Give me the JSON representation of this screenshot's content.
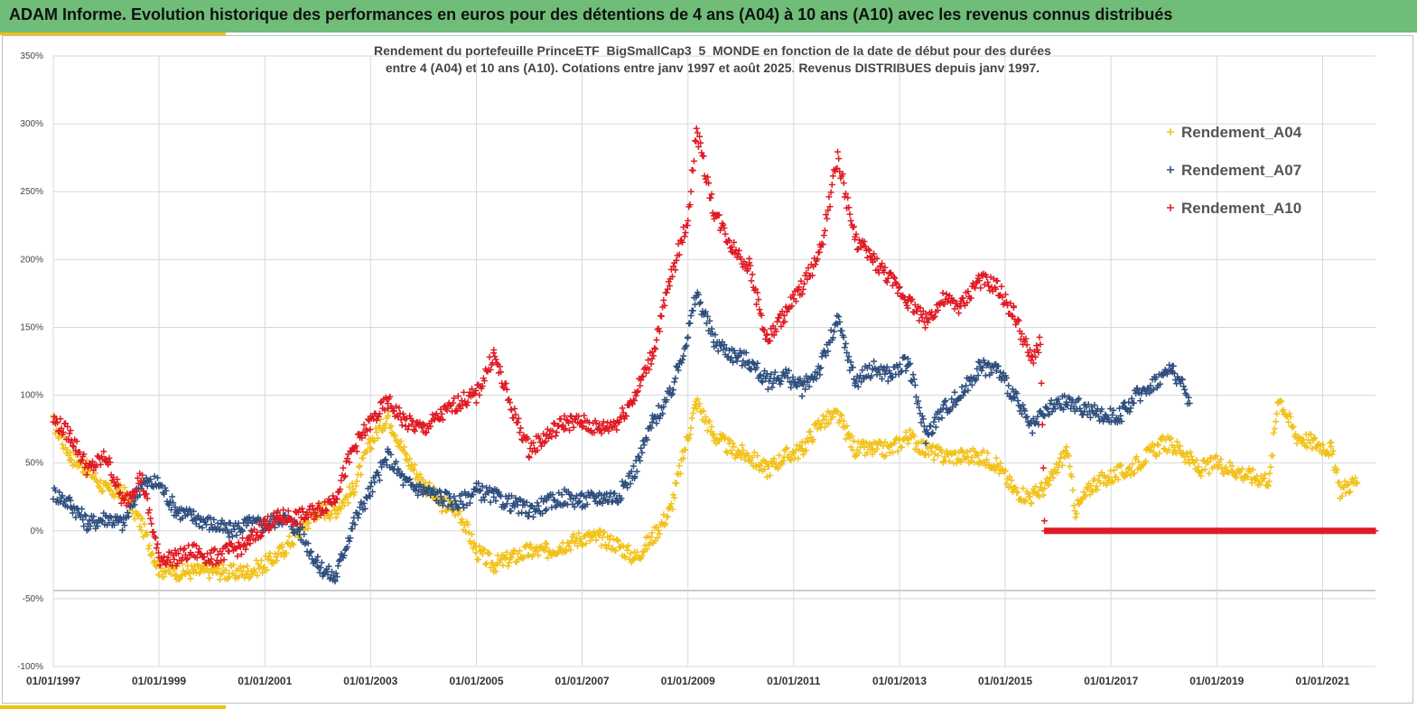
{
  "header": {
    "title": "ADAM Informe. Evolution historique des performances en euros pour des détentions de 4 ans (A04) à 10 ans (A10) avec les revenus connus distribués"
  },
  "colors": {
    "banner": "#6fbd78",
    "accent": "#f0c20c",
    "A04": "#f2c21b",
    "A07": "#2f4f7f",
    "A10": "#e01b24"
  },
  "chart_data": {
    "type": "scatter",
    "title_line1": "Rendement du portefeuille PrinceETF_BigSmallCap3_5_MONDE en fonction de la date de début pour des durées",
    "title_line2": "entre 4 (A04) et 10 ans (A10). Cotations entre janv 1997 et août 2025. Revenus DISTRIBUES depuis janv 1997.",
    "xlabel": "",
    "ylabel": "",
    "marker": "+",
    "grid": true,
    "legend_position": "top-right",
    "x_range": [
      "1997-01-01",
      "2022-01-01"
    ],
    "y_range": [
      -100,
      350
    ],
    "y_ticks": [
      "350%",
      "300%",
      "250%",
      "200%",
      "150%",
      "100%",
      "50%",
      "0%",
      "-50%",
      "-100%"
    ],
    "y_tick_values": [
      350,
      300,
      250,
      200,
      150,
      100,
      50,
      0,
      -50,
      -100
    ],
    "x_ticks": [
      "01/01/1997",
      "01/01/1999",
      "01/01/2001",
      "01/01/2003",
      "01/01/2005",
      "01/01/2007",
      "01/01/2009",
      "01/01/2011",
      "01/01/2013",
      "01/01/2015",
      "01/01/2017",
      "01/01/2019",
      "01/01/2021"
    ],
    "x_tick_dates": [
      "1997-01-01",
      "1999-01-01",
      "2001-01-01",
      "2003-01-01",
      "2005-01-01",
      "2007-01-01",
      "2009-01-01",
      "2011-01-01",
      "2013-01-01",
      "2015-01-01",
      "2017-01-01",
      "2019-01-01",
      "2021-01-01"
    ],
    "series": [
      {
        "name": "Rendement_A04",
        "color": "#f2c21b",
        "points": [
          [
            "1997-01-01",
            80
          ],
          [
            "1997-05-01",
            55
          ],
          [
            "1997-09-01",
            45
          ],
          [
            "1998-01-01",
            30
          ],
          [
            "1998-05-01",
            28
          ],
          [
            "1998-09-01",
            5
          ],
          [
            "1999-01-01",
            -28
          ],
          [
            "1999-05-01",
            -30
          ],
          [
            "1999-09-01",
            -30
          ],
          [
            "2000-01-01",
            -29
          ],
          [
            "2000-05-01",
            -31
          ],
          [
            "2000-09-01",
            -30
          ],
          [
            "2001-01-01",
            -25
          ],
          [
            "2001-05-01",
            -15
          ],
          [
            "2001-09-01",
            0
          ],
          [
            "2002-01-01",
            15
          ],
          [
            "2002-05-01",
            15
          ],
          [
            "2002-09-01",
            30
          ],
          [
            "2003-01-01",
            65
          ],
          [
            "2003-05-01",
            85
          ],
          [
            "2003-09-01",
            55
          ],
          [
            "2004-01-01",
            35
          ],
          [
            "2004-05-01",
            20
          ],
          [
            "2004-09-01",
            15
          ],
          [
            "2005-01-01",
            -15
          ],
          [
            "2005-05-01",
            -25
          ],
          [
            "2005-09-01",
            -20
          ],
          [
            "2006-01-01",
            -15
          ],
          [
            "2006-05-01",
            -15
          ],
          [
            "2006-09-01",
            -10
          ],
          [
            "2007-01-01",
            -5
          ],
          [
            "2007-05-01",
            -5
          ],
          [
            "2007-09-01",
            -10
          ],
          [
            "2008-01-01",
            -20
          ],
          [
            "2008-05-01",
            -5
          ],
          [
            "2008-09-01",
            15
          ],
          [
            "2009-01-01",
            70
          ],
          [
            "2009-03-01",
            95
          ],
          [
            "2009-07-01",
            70
          ],
          [
            "2009-11-01",
            60
          ],
          [
            "2010-03-01",
            55
          ],
          [
            "2010-07-01",
            45
          ],
          [
            "2010-11-01",
            55
          ],
          [
            "2011-03-01",
            60
          ],
          [
            "2011-07-01",
            80
          ],
          [
            "2011-11-01",
            85
          ],
          [
            "2012-03-01",
            60
          ],
          [
            "2012-07-01",
            60
          ],
          [
            "2012-11-01",
            60
          ],
          [
            "2013-03-01",
            70
          ],
          [
            "2013-07-01",
            60
          ],
          [
            "2013-11-01",
            55
          ],
          [
            "2014-03-01",
            55
          ],
          [
            "2014-07-01",
            55
          ],
          [
            "2014-11-01",
            50
          ],
          [
            "2015-03-01",
            30
          ],
          [
            "2015-07-01",
            25
          ],
          [
            "2015-11-01",
            35
          ],
          [
            "2016-03-01",
            60
          ],
          [
            "2016-05-01",
            15
          ],
          [
            "2016-09-01",
            35
          ],
          [
            "2017-01-01",
            40
          ],
          [
            "2017-05-01",
            45
          ],
          [
            "2017-09-01",
            55
          ],
          [
            "2018-01-01",
            65
          ],
          [
            "2018-05-01",
            60
          ],
          [
            "2018-09-01",
            45
          ],
          [
            "2019-01-01",
            50
          ],
          [
            "2019-05-01",
            45
          ],
          [
            "2019-09-01",
            40
          ],
          [
            "2020-01-01",
            38
          ],
          [
            "2020-03-01",
            100
          ],
          [
            "2020-07-01",
            70
          ],
          [
            "2020-11-01",
            65
          ],
          [
            "2021-03-01",
            60
          ],
          [
            "2021-05-01",
            30
          ],
          [
            "2021-09-01",
            37
          ]
        ]
      },
      {
        "name": "Rendement_A07",
        "color": "#2f4f7f",
        "points": [
          [
            "1997-01-01",
            28
          ],
          [
            "1997-05-01",
            20
          ],
          [
            "1997-09-01",
            5
          ],
          [
            "1998-01-01",
            10
          ],
          [
            "1998-05-01",
            5
          ],
          [
            "1998-09-01",
            35
          ],
          [
            "1999-01-01",
            35
          ],
          [
            "1999-05-01",
            15
          ],
          [
            "1999-09-01",
            10
          ],
          [
            "2000-01-01",
            5
          ],
          [
            "2000-05-01",
            0
          ],
          [
            "2000-09-01",
            5
          ],
          [
            "2001-01-01",
            5
          ],
          [
            "2001-05-01",
            10
          ],
          [
            "2001-09-01",
            0
          ],
          [
            "2002-01-01",
            -25
          ],
          [
            "2002-05-01",
            -35
          ],
          [
            "2002-09-01",
            5
          ],
          [
            "2003-01-01",
            30
          ],
          [
            "2003-05-01",
            55
          ],
          [
            "2003-09-01",
            35
          ],
          [
            "2004-01-01",
            30
          ],
          [
            "2004-05-01",
            25
          ],
          [
            "2004-09-01",
            20
          ],
          [
            "2005-01-01",
            30
          ],
          [
            "2005-05-01",
            25
          ],
          [
            "2005-09-01",
            20
          ],
          [
            "2006-01-01",
            15
          ],
          [
            "2006-05-01",
            20
          ],
          [
            "2006-09-01",
            25
          ],
          [
            "2007-01-01",
            22
          ],
          [
            "2007-05-01",
            25
          ],
          [
            "2007-09-01",
            25
          ],
          [
            "2008-01-01",
            45
          ],
          [
            "2008-05-01",
            80
          ],
          [
            "2008-09-01",
            100
          ],
          [
            "2009-01-01",
            145
          ],
          [
            "2009-03-01",
            175
          ],
          [
            "2009-07-01",
            140
          ],
          [
            "2009-11-01",
            130
          ],
          [
            "2010-03-01",
            125
          ],
          [
            "2010-07-01",
            110
          ],
          [
            "2010-11-01",
            115
          ],
          [
            "2011-03-01",
            105
          ],
          [
            "2011-07-01",
            120
          ],
          [
            "2011-11-01",
            155
          ],
          [
            "2012-03-01",
            110
          ],
          [
            "2012-07-01",
            120
          ],
          [
            "2012-11-01",
            115
          ],
          [
            "2013-03-01",
            125
          ],
          [
            "2013-07-01",
            70
          ],
          [
            "2013-11-01",
            90
          ],
          [
            "2014-03-01",
            100
          ],
          [
            "2014-07-01",
            120
          ],
          [
            "2014-11-01",
            120
          ],
          [
            "2015-03-01",
            100
          ],
          [
            "2015-07-01",
            75
          ],
          [
            "2015-11-01",
            90
          ],
          [
            "2016-03-01",
            95
          ],
          [
            "2016-07-01",
            90
          ],
          [
            "2016-11-01",
            85
          ],
          [
            "2017-03-01",
            85
          ],
          [
            "2017-07-01",
            100
          ],
          [
            "2017-11-01",
            110
          ],
          [
            "2018-03-01",
            120
          ],
          [
            "2018-07-01",
            95
          ]
        ]
      },
      {
        "name": "Rendement_A10",
        "color": "#e01b24",
        "points": [
          [
            "1997-01-01",
            82
          ],
          [
            "1997-05-01",
            70
          ],
          [
            "1997-09-01",
            45
          ],
          [
            "1998-01-01",
            55
          ],
          [
            "1998-05-01",
            20
          ],
          [
            "1998-09-01",
            40
          ],
          [
            "1999-01-01",
            -20
          ],
          [
            "1999-05-01",
            -20
          ],
          [
            "1999-09-01",
            -15
          ],
          [
            "2000-01-01",
            -20
          ],
          [
            "2000-05-01",
            -15
          ],
          [
            "2000-09-01",
            -10
          ],
          [
            "2001-01-01",
            5
          ],
          [
            "2001-05-01",
            10
          ],
          [
            "2001-09-01",
            10
          ],
          [
            "2002-01-01",
            15
          ],
          [
            "2002-05-01",
            25
          ],
          [
            "2002-09-01",
            60
          ],
          [
            "2003-01-01",
            80
          ],
          [
            "2003-05-01",
            95
          ],
          [
            "2003-09-01",
            80
          ],
          [
            "2004-01-01",
            75
          ],
          [
            "2004-05-01",
            85
          ],
          [
            "2004-09-01",
            95
          ],
          [
            "2005-01-01",
            100
          ],
          [
            "2005-05-01",
            130
          ],
          [
            "2005-09-01",
            90
          ],
          [
            "2006-01-01",
            60
          ],
          [
            "2006-05-01",
            70
          ],
          [
            "2006-09-01",
            80
          ],
          [
            "2007-01-01",
            80
          ],
          [
            "2007-05-01",
            75
          ],
          [
            "2007-09-01",
            80
          ],
          [
            "2008-01-01",
            100
          ],
          [
            "2008-05-01",
            130
          ],
          [
            "2008-09-01",
            185
          ],
          [
            "2009-01-01",
            230
          ],
          [
            "2009-03-01",
            295
          ],
          [
            "2009-07-01",
            235
          ],
          [
            "2009-11-01",
            210
          ],
          [
            "2010-03-01",
            195
          ],
          [
            "2010-07-01",
            140
          ],
          [
            "2010-11-01",
            160
          ],
          [
            "2011-03-01",
            180
          ],
          [
            "2011-07-01",
            205
          ],
          [
            "2011-11-01",
            275
          ],
          [
            "2012-03-01",
            215
          ],
          [
            "2012-07-01",
            200
          ],
          [
            "2012-11-01",
            185
          ],
          [
            "2013-03-01",
            170
          ],
          [
            "2013-07-01",
            155
          ],
          [
            "2013-11-01",
            170
          ],
          [
            "2014-03-01",
            165
          ],
          [
            "2014-07-01",
            185
          ],
          [
            "2014-11-01",
            180
          ],
          [
            "2015-03-01",
            160
          ],
          [
            "2015-07-01",
            125
          ],
          [
            "2015-09-01",
            140
          ],
          [
            "2015-10-01",
            0
          ],
          [
            "2017-01-01",
            0
          ],
          [
            "2019-01-01",
            0
          ],
          [
            "2021-01-01",
            0
          ],
          [
            "2022-01-01",
            0
          ]
        ]
      }
    ]
  }
}
